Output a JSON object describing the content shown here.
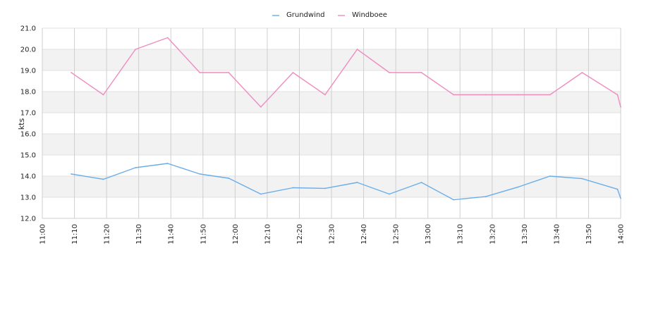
{
  "chart_data": {
    "type": "line",
    "ylabel": "kts",
    "ylim": [
      12.0,
      21.0
    ],
    "yticks": [
      "12.0",
      "13.0",
      "14.0",
      "15.0",
      "16.0",
      "17.0",
      "18.0",
      "19.0",
      "20.0",
      "21.0"
    ],
    "xticks": [
      "11:00",
      "11:10",
      "11:20",
      "11:30",
      "11:40",
      "11:50",
      "12:00",
      "12:10",
      "12:20",
      "12:30",
      "12:40",
      "12:50",
      "13:00",
      "13:10",
      "13:20",
      "13:30",
      "13:40",
      "13:50",
      "14:00"
    ],
    "xlim": [
      "11:00",
      "14:00"
    ],
    "grid": true,
    "banded_background": true,
    "legend_position": "top-center",
    "series": [
      {
        "name": "Grundwind",
        "color": "#6aaee8",
        "points": [
          [
            "11:09",
            14.1
          ],
          [
            "11:19",
            13.85
          ],
          [
            "11:29",
            14.4
          ],
          [
            "11:39",
            14.6
          ],
          [
            "11:49",
            14.1
          ],
          [
            "11:58",
            13.9
          ],
          [
            "12:08",
            13.15
          ],
          [
            "12:18",
            13.45
          ],
          [
            "12:28",
            13.42
          ],
          [
            "12:38",
            13.7
          ],
          [
            "12:48",
            13.15
          ],
          [
            "12:58",
            13.7
          ],
          [
            "13:08",
            12.88
          ],
          [
            "13:18",
            13.03
          ],
          [
            "13:28",
            13.48
          ],
          [
            "13:38",
            14.0
          ],
          [
            "13:48",
            13.88
          ],
          [
            "13:59",
            13.38
          ],
          [
            "14:00",
            12.95
          ]
        ]
      },
      {
        "name": "Windboee",
        "color": "#ef8cbf",
        "points": [
          [
            "11:09",
            18.9
          ],
          [
            "11:19",
            17.85
          ],
          [
            "11:29",
            20.0
          ],
          [
            "11:39",
            20.55
          ],
          [
            "11:49",
            18.9
          ],
          [
            "11:58",
            18.9
          ],
          [
            "12:08",
            17.27
          ],
          [
            "12:18",
            18.9
          ],
          [
            "12:28",
            17.85
          ],
          [
            "12:38",
            20.0
          ],
          [
            "12:48",
            18.9
          ],
          [
            "12:58",
            18.9
          ],
          [
            "13:08",
            17.85
          ],
          [
            "13:18",
            17.85
          ],
          [
            "13:28",
            17.85
          ],
          [
            "13:38",
            17.85
          ],
          [
            "13:48",
            18.9
          ],
          [
            "13:59",
            17.85
          ],
          [
            "14:00",
            17.27
          ]
        ]
      }
    ]
  }
}
